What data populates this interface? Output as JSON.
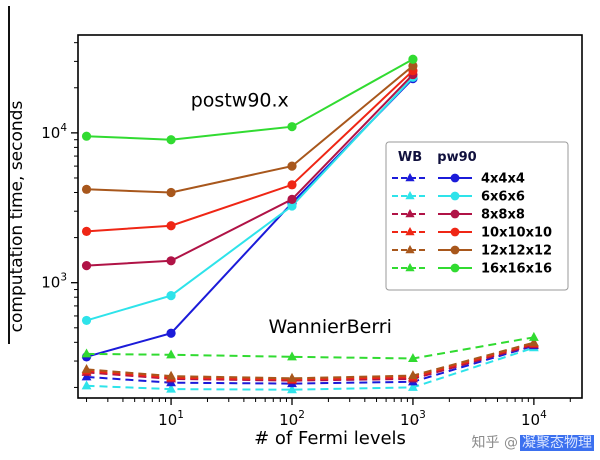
{
  "watermark": {
    "prefix": "知乎 @",
    "name": "凝聚态物理"
  },
  "chart_data": {
    "type": "line",
    "title": "",
    "xlabel": "# of Fermi levels",
    "ylabel": "computation time, seconds",
    "x_scale": "log",
    "y_scale": "log",
    "xlim": [
      1.7,
      25000
    ],
    "ylim": [
      170,
      45000
    ],
    "x_ticks": [
      10,
      100,
      1000,
      10000
    ],
    "y_ticks": [
      1000,
      10000
    ],
    "grid": false,
    "legend": {
      "position": "center-right",
      "col1_header": "WB",
      "col2_header": "pw90",
      "labels": [
        "4x4x4",
        "6x6x6",
        "8x8x8",
        "10x10x10",
        "12x12x12",
        "16x16x16"
      ],
      "colors": [
        "#1b1bd9",
        "#2ee3ea",
        "#b01346",
        "#ef2615",
        "#a8571c",
        "#31db31"
      ]
    },
    "annotations": [
      {
        "text": "postw90.x",
        "x": 37,
        "y": 15000,
        "fontsize": 19
      },
      {
        "text": "WannierBerri",
        "x": 207,
        "y": 460,
        "fontsize": 19
      }
    ],
    "series": [
      {
        "name": "pw90 4x4x4",
        "group": "pw90",
        "grid": "4x4x4",
        "color": "#1b1bd9",
        "style": "solid",
        "marker": "circle",
        "x": [
          2,
          10,
          100,
          1000
        ],
        "y": [
          320,
          460,
          3400,
          23000
        ]
      },
      {
        "name": "pw90 6x6x6",
        "group": "pw90",
        "grid": "6x6x6",
        "color": "#2ee3ea",
        "style": "solid",
        "marker": "circle",
        "x": [
          2,
          10,
          100,
          1000
        ],
        "y": [
          560,
          820,
          3250,
          23500
        ]
      },
      {
        "name": "pw90 8x8x8",
        "group": "pw90",
        "grid": "8x8x8",
        "color": "#b01346",
        "style": "solid",
        "marker": "circle",
        "x": [
          2,
          10,
          100,
          1000
        ],
        "y": [
          1300,
          1400,
          3600,
          24500
        ]
      },
      {
        "name": "pw90 10x10x10",
        "group": "pw90",
        "grid": "10x10x10",
        "color": "#ef2615",
        "style": "solid",
        "marker": "circle",
        "x": [
          2,
          10,
          100,
          1000
        ],
        "y": [
          2200,
          2400,
          4500,
          26000
        ]
      },
      {
        "name": "pw90 12x12x12",
        "group": "pw90",
        "grid": "12x12x12",
        "color": "#a8571c",
        "style": "solid",
        "marker": "circle",
        "x": [
          2,
          10,
          100,
          1000
        ],
        "y": [
          4200,
          4000,
          6000,
          28000
        ]
      },
      {
        "name": "pw90 16x16x16",
        "group": "pw90",
        "grid": "16x16x16",
        "color": "#31db31",
        "style": "solid",
        "marker": "circle",
        "x": [
          2,
          10,
          100,
          1000
        ],
        "y": [
          9500,
          9000,
          11000,
          31000
        ]
      },
      {
        "name": "WB 6x6x6",
        "group": "WB",
        "grid": "6x6x6",
        "color": "#2ee3ea",
        "style": "dashed",
        "marker": "triangle",
        "x": [
          2,
          10,
          100,
          1000,
          10000
        ],
        "y": [
          205,
          195,
          193,
          200,
          368
        ]
      },
      {
        "name": "WB 4x4x4",
        "group": "WB",
        "grid": "4x4x4",
        "color": "#1b1bd9",
        "style": "dashed",
        "marker": "triangle",
        "x": [
          2,
          10,
          100,
          1000,
          10000
        ],
        "y": [
          235,
          215,
          212,
          218,
          380
        ]
      },
      {
        "name": "WB 8x8x8",
        "group": "WB",
        "grid": "8x8x8",
        "color": "#b01346",
        "style": "dashed",
        "marker": "triangle",
        "x": [
          2,
          10,
          100,
          1000,
          10000
        ],
        "y": [
          252,
          228,
          222,
          228,
          385
        ]
      },
      {
        "name": "WB 10x10x10",
        "group": "WB",
        "grid": "10x10x10",
        "color": "#ef2615",
        "style": "dashed",
        "marker": "triangle",
        "x": [
          2,
          10,
          100,
          1000,
          10000
        ],
        "y": [
          258,
          232,
          226,
          234,
          392
        ]
      },
      {
        "name": "WB 12x12x12",
        "group": "WB",
        "grid": "12x12x12",
        "color": "#a8571c",
        "style": "dashed",
        "marker": "triangle",
        "x": [
          2,
          10,
          100,
          1000,
          10000
        ],
        "y": [
          264,
          238,
          230,
          240,
          398
        ]
      },
      {
        "name": "WB 16x16x16",
        "group": "WB",
        "grid": "16x16x16",
        "color": "#31db31",
        "style": "dashed",
        "marker": "triangle",
        "x": [
          2,
          10,
          100,
          1000,
          10000
        ],
        "y": [
          335,
          330,
          320,
          312,
          432
        ]
      }
    ]
  }
}
